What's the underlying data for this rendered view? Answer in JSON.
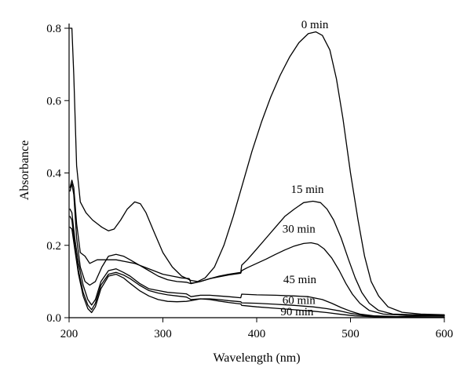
{
  "chart_data": {
    "type": "line",
    "xlabel": "Wavelength (nm)",
    "ylabel": "Absorbance",
    "xlim": [
      200,
      600
    ],
    "ylim": [
      0,
      0.8
    ],
    "x_ticks": [
      "200",
      "300",
      "400",
      "500",
      "600"
    ],
    "y_ticks": [
      "0.0",
      "0.2",
      "0.4",
      "0.6",
      "0.8"
    ],
    "grid": false,
    "legend": "none",
    "series": [
      {
        "name": "0 min",
        "points": [
          [
            201,
            0.8
          ],
          [
            203,
            0.8
          ],
          [
            205,
            0.67
          ],
          [
            208,
            0.42
          ],
          [
            212,
            0.32
          ],
          [
            218,
            0.29
          ],
          [
            225,
            0.27
          ],
          [
            235,
            0.25
          ],
          [
            242,
            0.24
          ],
          [
            248,
            0.245
          ],
          [
            255,
            0.27
          ],
          [
            262,
            0.3
          ],
          [
            270,
            0.32
          ],
          [
            276,
            0.315
          ],
          [
            282,
            0.29
          ],
          [
            290,
            0.24
          ],
          [
            300,
            0.18
          ],
          [
            310,
            0.14
          ],
          [
            320,
            0.115
          ],
          [
            330,
            0.103
          ],
          [
            337,
            0.1
          ],
          [
            345,
            0.11
          ],
          [
            355,
            0.14
          ],
          [
            365,
            0.2
          ],
          [
            375,
            0.28
          ],
          [
            385,
            0.37
          ],
          [
            395,
            0.46
          ],
          [
            405,
            0.54
          ],
          [
            415,
            0.61
          ],
          [
            425,
            0.67
          ],
          [
            435,
            0.72
          ],
          [
            445,
            0.76
          ],
          [
            455,
            0.785
          ],
          [
            463,
            0.79
          ],
          [
            470,
            0.78
          ],
          [
            478,
            0.74
          ],
          [
            485,
            0.66
          ],
          [
            492,
            0.55
          ],
          [
            500,
            0.4
          ],
          [
            508,
            0.27
          ],
          [
            515,
            0.17
          ],
          [
            522,
            0.1
          ],
          [
            530,
            0.06
          ],
          [
            540,
            0.03
          ],
          [
            555,
            0.015
          ],
          [
            575,
            0.01
          ],
          [
            600,
            0.008
          ]
        ]
      },
      {
        "name": "15 min",
        "points": [
          [
            201,
            0.36
          ],
          [
            203,
            0.38
          ],
          [
            205,
            0.36
          ],
          [
            208,
            0.26
          ],
          [
            212,
            0.18
          ],
          [
            217,
            0.17
          ],
          [
            222,
            0.15
          ],
          [
            230,
            0.16
          ],
          [
            240,
            0.16
          ],
          [
            250,
            0.16
          ],
          [
            260,
            0.155
          ],
          [
            270,
            0.15
          ],
          [
            280,
            0.14
          ],
          [
            290,
            0.13
          ],
          [
            300,
            0.12
          ],
          [
            310,
            0.115
          ],
          [
            320,
            0.11
          ],
          [
            328,
            0.108
          ],
          [
            330,
            0.095
          ],
          [
            340,
            0.1
          ],
          [
            350,
            0.108
          ],
          [
            360,
            0.115
          ],
          [
            370,
            0.12
          ],
          [
            383,
            0.125
          ],
          [
            384,
            0.145
          ],
          [
            390,
            0.16
          ],
          [
            400,
            0.19
          ],
          [
            410,
            0.22
          ],
          [
            420,
            0.25
          ],
          [
            430,
            0.28
          ],
          [
            440,
            0.3
          ],
          [
            450,
            0.318
          ],
          [
            460,
            0.322
          ],
          [
            468,
            0.318
          ],
          [
            475,
            0.3
          ],
          [
            482,
            0.27
          ],
          [
            490,
            0.22
          ],
          [
            498,
            0.16
          ],
          [
            505,
            0.11
          ],
          [
            512,
            0.07
          ],
          [
            520,
            0.04
          ],
          [
            530,
            0.02
          ],
          [
            545,
            0.01
          ],
          [
            570,
            0.008
          ],
          [
            600,
            0.006
          ]
        ]
      },
      {
        "name": "30 min",
        "points": [
          [
            201,
            0.35
          ],
          [
            203,
            0.37
          ],
          [
            205,
            0.34
          ],
          [
            208,
            0.22
          ],
          [
            212,
            0.14
          ],
          [
            217,
            0.1
          ],
          [
            222,
            0.09
          ],
          [
            228,
            0.1
          ],
          [
            235,
            0.14
          ],
          [
            242,
            0.17
          ],
          [
            250,
            0.175
          ],
          [
            258,
            0.17
          ],
          [
            265,
            0.16
          ],
          [
            275,
            0.145
          ],
          [
            285,
            0.13
          ],
          [
            295,
            0.115
          ],
          [
            305,
            0.105
          ],
          [
            315,
            0.1
          ],
          [
            325,
            0.098
          ],
          [
            330,
            0.094
          ],
          [
            340,
            0.1
          ],
          [
            350,
            0.108
          ],
          [
            360,
            0.113
          ],
          [
            370,
            0.118
          ],
          [
            383,
            0.123
          ],
          [
            384,
            0.13
          ],
          [
            390,
            0.138
          ],
          [
            400,
            0.15
          ],
          [
            410,
            0.162
          ],
          [
            420,
            0.175
          ],
          [
            430,
            0.187
          ],
          [
            440,
            0.198
          ],
          [
            450,
            0.205
          ],
          [
            458,
            0.207
          ],
          [
            465,
            0.203
          ],
          [
            472,
            0.19
          ],
          [
            480,
            0.165
          ],
          [
            488,
            0.13
          ],
          [
            495,
            0.095
          ],
          [
            502,
            0.065
          ],
          [
            510,
            0.04
          ],
          [
            520,
            0.02
          ],
          [
            535,
            0.01
          ],
          [
            560,
            0.006
          ],
          [
            600,
            0.005
          ]
        ]
      },
      {
        "name": "45 min",
        "points": [
          [
            201,
            0.3
          ],
          [
            203,
            0.29
          ],
          [
            206,
            0.22
          ],
          [
            210,
            0.15
          ],
          [
            215,
            0.09
          ],
          [
            220,
            0.05
          ],
          [
            224,
            0.035
          ],
          [
            228,
            0.05
          ],
          [
            234,
            0.1
          ],
          [
            242,
            0.13
          ],
          [
            250,
            0.135
          ],
          [
            258,
            0.125
          ],
          [
            265,
            0.115
          ],
          [
            275,
            0.095
          ],
          [
            285,
            0.08
          ],
          [
            295,
            0.075
          ],
          [
            305,
            0.07
          ],
          [
            315,
            0.068
          ],
          [
            325,
            0.066
          ],
          [
            330,
            0.058
          ],
          [
            340,
            0.062
          ],
          [
            350,
            0.062
          ],
          [
            360,
            0.06
          ],
          [
            370,
            0.058
          ],
          [
            383,
            0.055
          ],
          [
            384,
            0.065
          ],
          [
            400,
            0.063
          ],
          [
            420,
            0.062
          ],
          [
            440,
            0.06
          ],
          [
            455,
            0.058
          ],
          [
            470,
            0.05
          ],
          [
            480,
            0.04
          ],
          [
            490,
            0.028
          ],
          [
            500,
            0.018
          ],
          [
            510,
            0.01
          ],
          [
            525,
            0.005
          ],
          [
            550,
            0.003
          ],
          [
            600,
            0.002
          ]
        ]
      },
      {
        "name": "60 min",
        "points": [
          [
            201,
            0.28
          ],
          [
            203,
            0.27
          ],
          [
            206,
            0.2
          ],
          [
            210,
            0.13
          ],
          [
            215,
            0.07
          ],
          [
            220,
            0.035
          ],
          [
            224,
            0.022
          ],
          [
            228,
            0.04
          ],
          [
            234,
            0.09
          ],
          [
            242,
            0.12
          ],
          [
            250,
            0.125
          ],
          [
            258,
            0.118
          ],
          [
            265,
            0.108
          ],
          [
            275,
            0.09
          ],
          [
            285,
            0.075
          ],
          [
            295,
            0.068
          ],
          [
            305,
            0.063
          ],
          [
            315,
            0.06
          ],
          [
            325,
            0.057
          ],
          [
            330,
            0.05
          ],
          [
            340,
            0.052
          ],
          [
            350,
            0.052
          ],
          [
            360,
            0.05
          ],
          [
            370,
            0.047
          ],
          [
            383,
            0.044
          ],
          [
            384,
            0.041
          ],
          [
            400,
            0.04
          ],
          [
            420,
            0.037
          ],
          [
            440,
            0.034
          ],
          [
            460,
            0.03
          ],
          [
            475,
            0.025
          ],
          [
            490,
            0.018
          ],
          [
            500,
            0.012
          ],
          [
            515,
            0.006
          ],
          [
            540,
            0.003
          ],
          [
            600,
            0.002
          ]
        ]
      },
      {
        "name": "90 min",
        "points": [
          [
            201,
            0.25
          ],
          [
            203,
            0.245
          ],
          [
            206,
            0.19
          ],
          [
            210,
            0.12
          ],
          [
            215,
            0.06
          ],
          [
            220,
            0.025
          ],
          [
            224,
            0.014
          ],
          [
            228,
            0.03
          ],
          [
            234,
            0.08
          ],
          [
            242,
            0.115
          ],
          [
            250,
            0.12
          ],
          [
            258,
            0.11
          ],
          [
            265,
            0.095
          ],
          [
            275,
            0.075
          ],
          [
            285,
            0.06
          ],
          [
            295,
            0.05
          ],
          [
            305,
            0.045
          ],
          [
            315,
            0.044
          ],
          [
            325,
            0.045
          ],
          [
            332,
            0.048
          ],
          [
            340,
            0.052
          ],
          [
            350,
            0.05
          ],
          [
            360,
            0.046
          ],
          [
            370,
            0.042
          ],
          [
            383,
            0.038
          ],
          [
            384,
            0.034
          ],
          [
            400,
            0.03
          ],
          [
            420,
            0.026
          ],
          [
            440,
            0.022
          ],
          [
            460,
            0.018
          ],
          [
            475,
            0.014
          ],
          [
            490,
            0.009
          ],
          [
            505,
            0.005
          ],
          [
            530,
            0.002
          ],
          [
            600,
            0.001
          ]
        ]
      }
    ],
    "labels": [
      {
        "text": "0 min",
        "x": 462,
        "y": 0.8
      },
      {
        "text": "15 min",
        "x": 454,
        "y": 0.345
      },
      {
        "text": "30 min",
        "x": 445,
        "y": 0.235
      },
      {
        "text": "45 min",
        "x": 446,
        "y": 0.095
      },
      {
        "text": "60 min",
        "x": 445,
        "y": 0.038
      },
      {
        "text": "90 min",
        "x": 443,
        "y": 0.007
      }
    ]
  }
}
